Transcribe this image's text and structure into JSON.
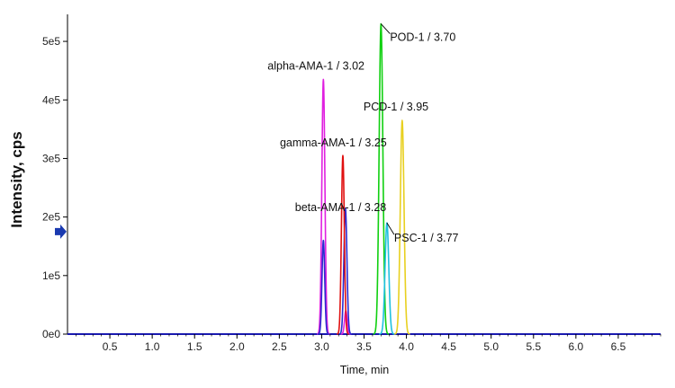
{
  "chart_data": {
    "type": "line",
    "xlabel": "Time, min",
    "ylabel": "Intensity, cps",
    "xlim": [
      0,
      7.0
    ],
    "ylim": [
      0,
      540000
    ],
    "x_ticks": [
      0.5,
      1.0,
      1.5,
      2.0,
      2.5,
      3.0,
      3.5,
      4.0,
      4.5,
      5.0,
      5.5,
      6.0,
      6.5
    ],
    "x_tick_labels": [
      "0.5",
      "1.0",
      "1.5",
      "2.0",
      "2.5",
      "3.0",
      "3.5",
      "4.0",
      "4.5",
      "5.0",
      "5.5",
      "6.0",
      "6.5"
    ],
    "y_ticks": [
      0,
      100000,
      200000,
      300000,
      400000,
      500000
    ],
    "y_tick_labels": [
      "0e0",
      "1e5",
      "2e5",
      "3e5",
      "4e5",
      "5e5"
    ],
    "grid": false,
    "baseline_color": "#1a1ab0",
    "series": [
      {
        "color": "#e020e0",
        "peaks": [
          {
            "t": 3.02,
            "h": 435000,
            "w": 0.018
          },
          {
            "t": 3.285,
            "h": 40000,
            "w": 0.015
          }
        ]
      },
      {
        "color": "#2b2bd0",
        "peaks": [
          {
            "t": 3.02,
            "h": 160000,
            "w": 0.016
          },
          {
            "t": 3.28,
            "h": 215000,
            "w": 0.018
          }
        ]
      },
      {
        "color": "#e01010",
        "peaks": [
          {
            "t": 3.25,
            "h": 305000,
            "w": 0.017
          }
        ]
      },
      {
        "color": "#10d010",
        "peaks": [
          {
            "t": 3.7,
            "h": 530000,
            "w": 0.022
          }
        ]
      },
      {
        "color": "#20c0e0",
        "peaks": [
          {
            "t": 3.77,
            "h": 190000,
            "w": 0.022
          }
        ]
      },
      {
        "color": "#e8d020",
        "peaks": [
          {
            "t": 3.95,
            "h": 365000,
            "w": 0.022
          }
        ]
      }
    ],
    "annotations": [
      {
        "text": "alpha-AMA-1 / 3.02",
        "t": 3.02,
        "y": 435000
      },
      {
        "text": "gamma-AMA-1 / 3.25",
        "t": 3.25,
        "y": 305000
      },
      {
        "text": "beta-AMA-1 / 3.28",
        "t": 3.28,
        "y": 215000
      },
      {
        "text": "POD-1 / 3.70",
        "t": 3.7,
        "y": 530000
      },
      {
        "text": "PCD-1 / 3.95",
        "t": 3.95,
        "y": 365000
      },
      {
        "text": "PSC-1 / 3.77",
        "t": 3.77,
        "y": 190000
      }
    ],
    "marker": {
      "type": "arrow",
      "y": 175000,
      "color": "#1a3ab0"
    }
  }
}
